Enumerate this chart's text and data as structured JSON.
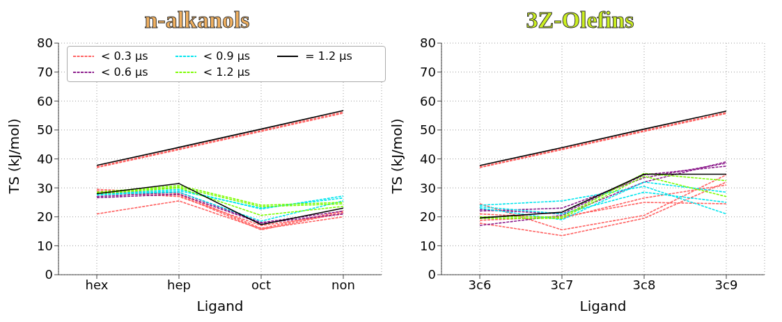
{
  "chart_data": [
    {
      "type": "line",
      "title": "n-alkanols",
      "xlabel": "Ligand",
      "ylabel": "TS (kJ/mol)",
      "categories": [
        "hex",
        "hep",
        "oct",
        "non"
      ],
      "ylim": [
        0,
        80
      ],
      "yticks": [
        0,
        10,
        20,
        30,
        40,
        50,
        60,
        70,
        80
      ],
      "grid": true,
      "legend": "top left",
      "marker": "none",
      "series": [
        {
          "name": "< 0.3 μs",
          "color": "#ff6060",
          "line_style": "dashed",
          "values": [
            37.3,
            43.5,
            49.8,
            56.2
          ]
        },
        {
          "color": "#ff6060",
          "line_style": "dashed",
          "values": [
            37,
            43.2,
            49.5,
            55.8
          ]
        },
        {
          "color": "#ff6060",
          "line_style": "dashed",
          "values": [
            29.5,
            28,
            16,
            22
          ]
        },
        {
          "color": "#ff6060",
          "line_style": "dashed",
          "values": [
            29,
            27.5,
            15.5,
            21.5
          ]
        },
        {
          "color": "#ff6060",
          "line_style": "dashed",
          "values": [
            21,
            25.5,
            15.8,
            20
          ]
        },
        {
          "color": "#ff6060",
          "line_style": "dashed",
          "values": [
            28.5,
            27,
            17,
            21
          ]
        },
        {
          "name": "< 0.6 μs",
          "color": "#8b1a8b",
          "line_style": "dashed",
          "values": [
            27,
            28.5,
            18,
            22
          ]
        },
        {
          "color": "#8b1a8b",
          "line_style": "dashed",
          "values": [
            26.6,
            27.8,
            17.8,
            21
          ]
        },
        {
          "name": "< 0.9 μs",
          "color": "#00e5ee",
          "line_style": "dashed",
          "values": [
            27.7,
            29.5,
            22.7,
            27.2
          ]
        },
        {
          "color": "#00e5ee",
          "line_style": "dashed",
          "values": [
            27.5,
            29,
            23,
            26.5
          ]
        },
        {
          "color": "#00e5ee",
          "line_style": "dashed",
          "values": [
            27.8,
            28.5,
            18.5,
            25.5
          ]
        },
        {
          "name": "< 1.2 μs",
          "color": "#7cfc00",
          "line_style": "dashed",
          "values": [
            28.5,
            30.8,
            24,
            25
          ]
        },
        {
          "color": "#7cfc00",
          "line_style": "dashed",
          "values": [
            28.3,
            30.3,
            23.5,
            24.5
          ]
        },
        {
          "color": "#7cfc00",
          "line_style": "dashed",
          "values": [
            28,
            30,
            20.5,
            23.6
          ]
        },
        {
          "name": "= 1.2 μs",
          "color": "#000000",
          "line_style": "solid",
          "values": [
            37.8,
            44,
            50.3,
            56.7
          ]
        },
        {
          "color": "#000000",
          "line_style": "solid",
          "values": [
            28,
            31.5,
            17.3,
            23
          ]
        }
      ]
    },
    {
      "type": "line",
      "title": "3Z-Olefins",
      "xlabel": "Ligand",
      "ylabel": "TS (kJ/mol)",
      "categories": [
        "3c6",
        "3c7",
        "3c8",
        "3c9"
      ],
      "ylim": [
        0,
        80
      ],
      "yticks": [
        0,
        10,
        20,
        30,
        40,
        50,
        60,
        70,
        80
      ],
      "grid": true,
      "marker": "none",
      "series": [
        {
          "color": "#ff6060",
          "line_style": "dashed",
          "values": [
            37.2,
            43.5,
            49.8,
            56
          ]
        },
        {
          "color": "#ff6060",
          "line_style": "dashed",
          "values": [
            37,
            43.2,
            49.5,
            55.7
          ]
        },
        {
          "color": "#ff6060",
          "line_style": "dashed",
          "values": [
            24.5,
            15.5,
            20.5,
            34.5
          ]
        },
        {
          "color": "#ff6060",
          "line_style": "dashed",
          "values": [
            17.8,
            13.5,
            19.5,
            32
          ]
        },
        {
          "color": "#ff6060",
          "line_style": "dashed",
          "values": [
            18.8,
            20,
            25,
            24.5
          ]
        },
        {
          "color": "#ff6060",
          "line_style": "dashed",
          "values": [
            21,
            19.5,
            26.5,
            31
          ]
        },
        {
          "color": "#8b1a8b",
          "line_style": "dashed",
          "values": [
            22,
            23,
            33.5,
            38.5
          ]
        },
        {
          "color": "#8b1a8b",
          "line_style": "dashed",
          "values": [
            17,
            20.5,
            32,
            39
          ]
        },
        {
          "color": "#8b1a8b",
          "line_style": "dashed",
          "values": [
            22.5,
            21,
            34.5,
            37.5
          ]
        },
        {
          "color": "#00e5ee",
          "line_style": "dashed",
          "values": [
            24,
            25.5,
            30.5,
            21
          ]
        },
        {
          "color": "#00e5ee",
          "line_style": "dashed",
          "values": [
            23,
            19,
            32,
            28.5
          ]
        },
        {
          "color": "#00e5ee",
          "line_style": "dashed",
          "values": [
            23.5,
            21,
            28.5,
            25
          ]
        },
        {
          "color": "#7cfc00",
          "line_style": "dashed",
          "values": [
            20,
            20,
            35,
            32.5
          ]
        },
        {
          "color": "#7cfc00",
          "line_style": "dashed",
          "values": [
            19.5,
            19.5,
            34,
            27
          ]
        },
        {
          "color": "#000000",
          "line_style": "solid",
          "values": [
            37.7,
            43.9,
            50.3,
            56.5
          ]
        },
        {
          "color": "#000000",
          "line_style": "solid",
          "values": [
            19.6,
            21.6,
            34.7,
            34.7
          ]
        }
      ]
    }
  ]
}
